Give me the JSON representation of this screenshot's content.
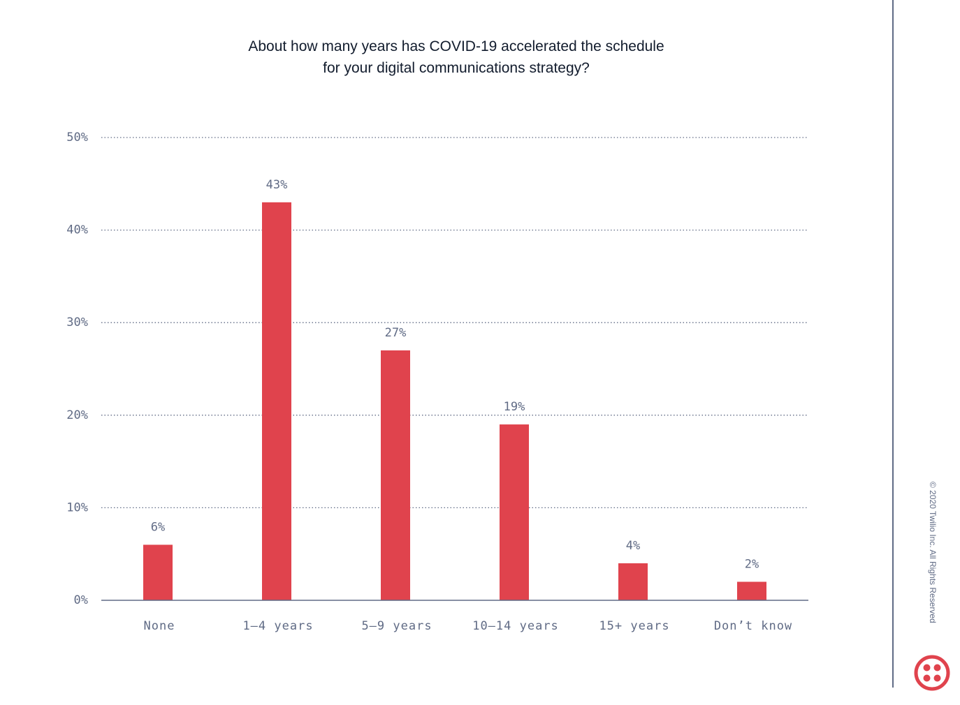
{
  "chart_data": {
    "type": "bar",
    "title_lines": [
      "About how many years has COVID-19 accelerated the schedule",
      "for your digital communications strategy?"
    ],
    "categories": [
      "None",
      "1–4 years",
      "5–9 years",
      "10–14 years",
      "15+ years",
      "Don’t know"
    ],
    "values": [
      6,
      43,
      27,
      19,
      4,
      2
    ],
    "value_labels": [
      "6%",
      "43%",
      "27%",
      "19%",
      "4%",
      "2%"
    ],
    "y_ticks": [
      0,
      10,
      20,
      30,
      40,
      50
    ],
    "y_tick_labels": [
      "0%",
      "10%",
      "20%",
      "30%",
      "40%",
      "50%"
    ],
    "ylim": [
      0,
      50
    ],
    "grid": true,
    "xlabel": "",
    "ylabel": ""
  },
  "colors": {
    "bar": "#e0434d",
    "grid": "#606b85",
    "logo": "#e0434d",
    "divider": "#606b85"
  },
  "footer": {
    "copyright": "© 2020 Twilio Inc. All Rights Reserved",
    "logo_icon": "twilio-logo-icon"
  }
}
